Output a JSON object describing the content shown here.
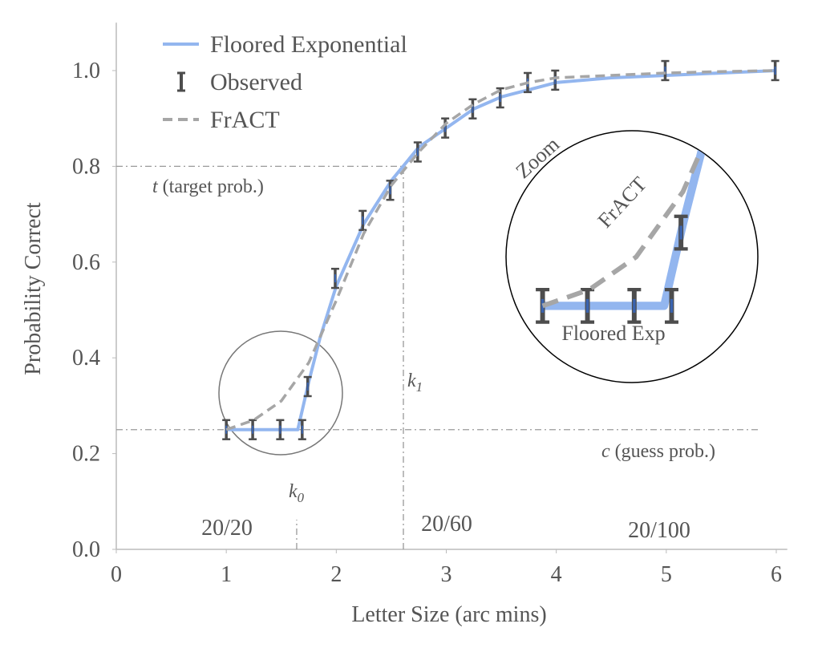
{
  "chart_data": {
    "type": "line",
    "xlabel": "Letter Size (arc mins)",
    "ylabel": "Probability Correct",
    "xlim": [
      0,
      6.1
    ],
    "ylim": [
      0,
      1.1
    ],
    "xticks": [
      0,
      1,
      2,
      3,
      4,
      5,
      6
    ],
    "yticks": [
      {
        "value": 0,
        "label": "0.0"
      },
      0.2,
      0.4,
      0.6,
      0.8,
      {
        "value": 1,
        "label": "1.0"
      }
    ],
    "series": [
      {
        "name": "Floored Exponential",
        "color": "#93b6ef",
        "style": "solid",
        "x": [
          1,
          1.65,
          1.75,
          1.85,
          2,
          2.25,
          2.5,
          2.75,
          3,
          3.25,
          3.5,
          3.75,
          4,
          4.5,
          5,
          5.5,
          6
        ],
        "values": [
          0.25,
          0.25,
          0.35,
          0.44,
          0.55,
          0.68,
          0.77,
          0.84,
          0.88,
          0.92,
          0.945,
          0.96,
          0.975,
          0.985,
          0.99,
          0.995,
          1.0
        ]
      },
      {
        "name": "Observed",
        "color": "#4d4d4d",
        "style": "errorbar",
        "x": [
          1.0,
          1.24,
          1.49,
          1.69,
          1.74,
          1.99,
          2.24,
          2.49,
          2.74,
          2.99,
          3.24,
          3.49,
          3.74,
          3.99,
          4.99,
          5.99
        ],
        "values": [
          0.25,
          0.25,
          0.25,
          0.25,
          0.34,
          0.566,
          0.687,
          0.75,
          0.83,
          0.88,
          0.92,
          0.943,
          0.975,
          0.98,
          1.0,
          1.0
        ],
        "errors": [
          0.02,
          0.02,
          0.02,
          0.02,
          0.02,
          0.02,
          0.02,
          0.02,
          0.02,
          0.02,
          0.02,
          0.02,
          0.02,
          0.02,
          0.02,
          0.02
        ]
      },
      {
        "name": "FrACT",
        "color": "#a6a6a6",
        "style": "dashed",
        "x": [
          1,
          1.25,
          1.5,
          1.75,
          2,
          2.25,
          2.5,
          2.75,
          3,
          3.25,
          3.5,
          3.75,
          4,
          4.5,
          5,
          5.5,
          6
        ],
        "values": [
          0.25,
          0.27,
          0.31,
          0.39,
          0.52,
          0.66,
          0.76,
          0.83,
          0.89,
          0.93,
          0.96,
          0.975,
          0.985,
          0.99,
          0.995,
          0.998,
          1.0
        ]
      }
    ],
    "reference_lines": {
      "target": 0.8,
      "guess": 0.25,
      "k0": 1.64,
      "k1": 2.61
    },
    "annotations": [
      {
        "italic": "t",
        "text": "(target prob.)"
      },
      {
        "italic": "c",
        "text": "(guess prob.)"
      },
      {
        "italic": "k",
        "sub": "0"
      },
      {
        "italic": "k",
        "sub": "1"
      },
      {
        "text": "20/20"
      },
      {
        "text": "20/60"
      },
      {
        "text": "20/100"
      },
      {
        "text": "Zoom"
      },
      {
        "text": "FrACT"
      },
      {
        "text": "Floored Exp"
      }
    ]
  }
}
